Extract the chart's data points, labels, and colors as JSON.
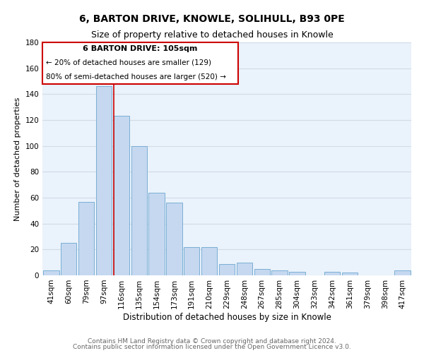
{
  "title": "6, BARTON DRIVE, KNOWLE, SOLIHULL, B93 0PE",
  "subtitle": "Size of property relative to detached houses in Knowle",
  "xlabel": "Distribution of detached houses by size in Knowle",
  "ylabel": "Number of detached properties",
  "bar_labels": [
    "41sqm",
    "60sqm",
    "79sqm",
    "97sqm",
    "116sqm",
    "135sqm",
    "154sqm",
    "173sqm",
    "191sqm",
    "210sqm",
    "229sqm",
    "248sqm",
    "267sqm",
    "285sqm",
    "304sqm",
    "323sqm",
    "342sqm",
    "361sqm",
    "379sqm",
    "398sqm",
    "417sqm"
  ],
  "bar_values": [
    4,
    25,
    57,
    146,
    123,
    100,
    64,
    56,
    22,
    22,
    9,
    10,
    5,
    4,
    3,
    0,
    3,
    2,
    0,
    0,
    4
  ],
  "bar_color": "#c5d8f0",
  "bar_edge_color": "#7aafd4",
  "grid_color": "#d0dce8",
  "background_color": "#eaf2fb",
  "ylim": [
    0,
    180
  ],
  "yticks": [
    0,
    20,
    40,
    60,
    80,
    100,
    120,
    140,
    160,
    180
  ],
  "annotation_box_title": "6 BARTON DRIVE: 105sqm",
  "annotation_line1": "← 20% of detached houses are smaller (129)",
  "annotation_line2": "80% of semi-detached houses are larger (520) →",
  "vline_x_index": 4,
  "vline_color": "#cc0000",
  "footer_line1": "Contains HM Land Registry data © Crown copyright and database right 2024.",
  "footer_line2": "Contains public sector information licensed under the Open Government Licence v3.0.",
  "title_fontsize": 10,
  "subtitle_fontsize": 9,
  "xlabel_fontsize": 8.5,
  "ylabel_fontsize": 8,
  "tick_fontsize": 7.5,
  "annotation_title_fontsize": 8,
  "annotation_text_fontsize": 7.5,
  "footer_fontsize": 6.5
}
